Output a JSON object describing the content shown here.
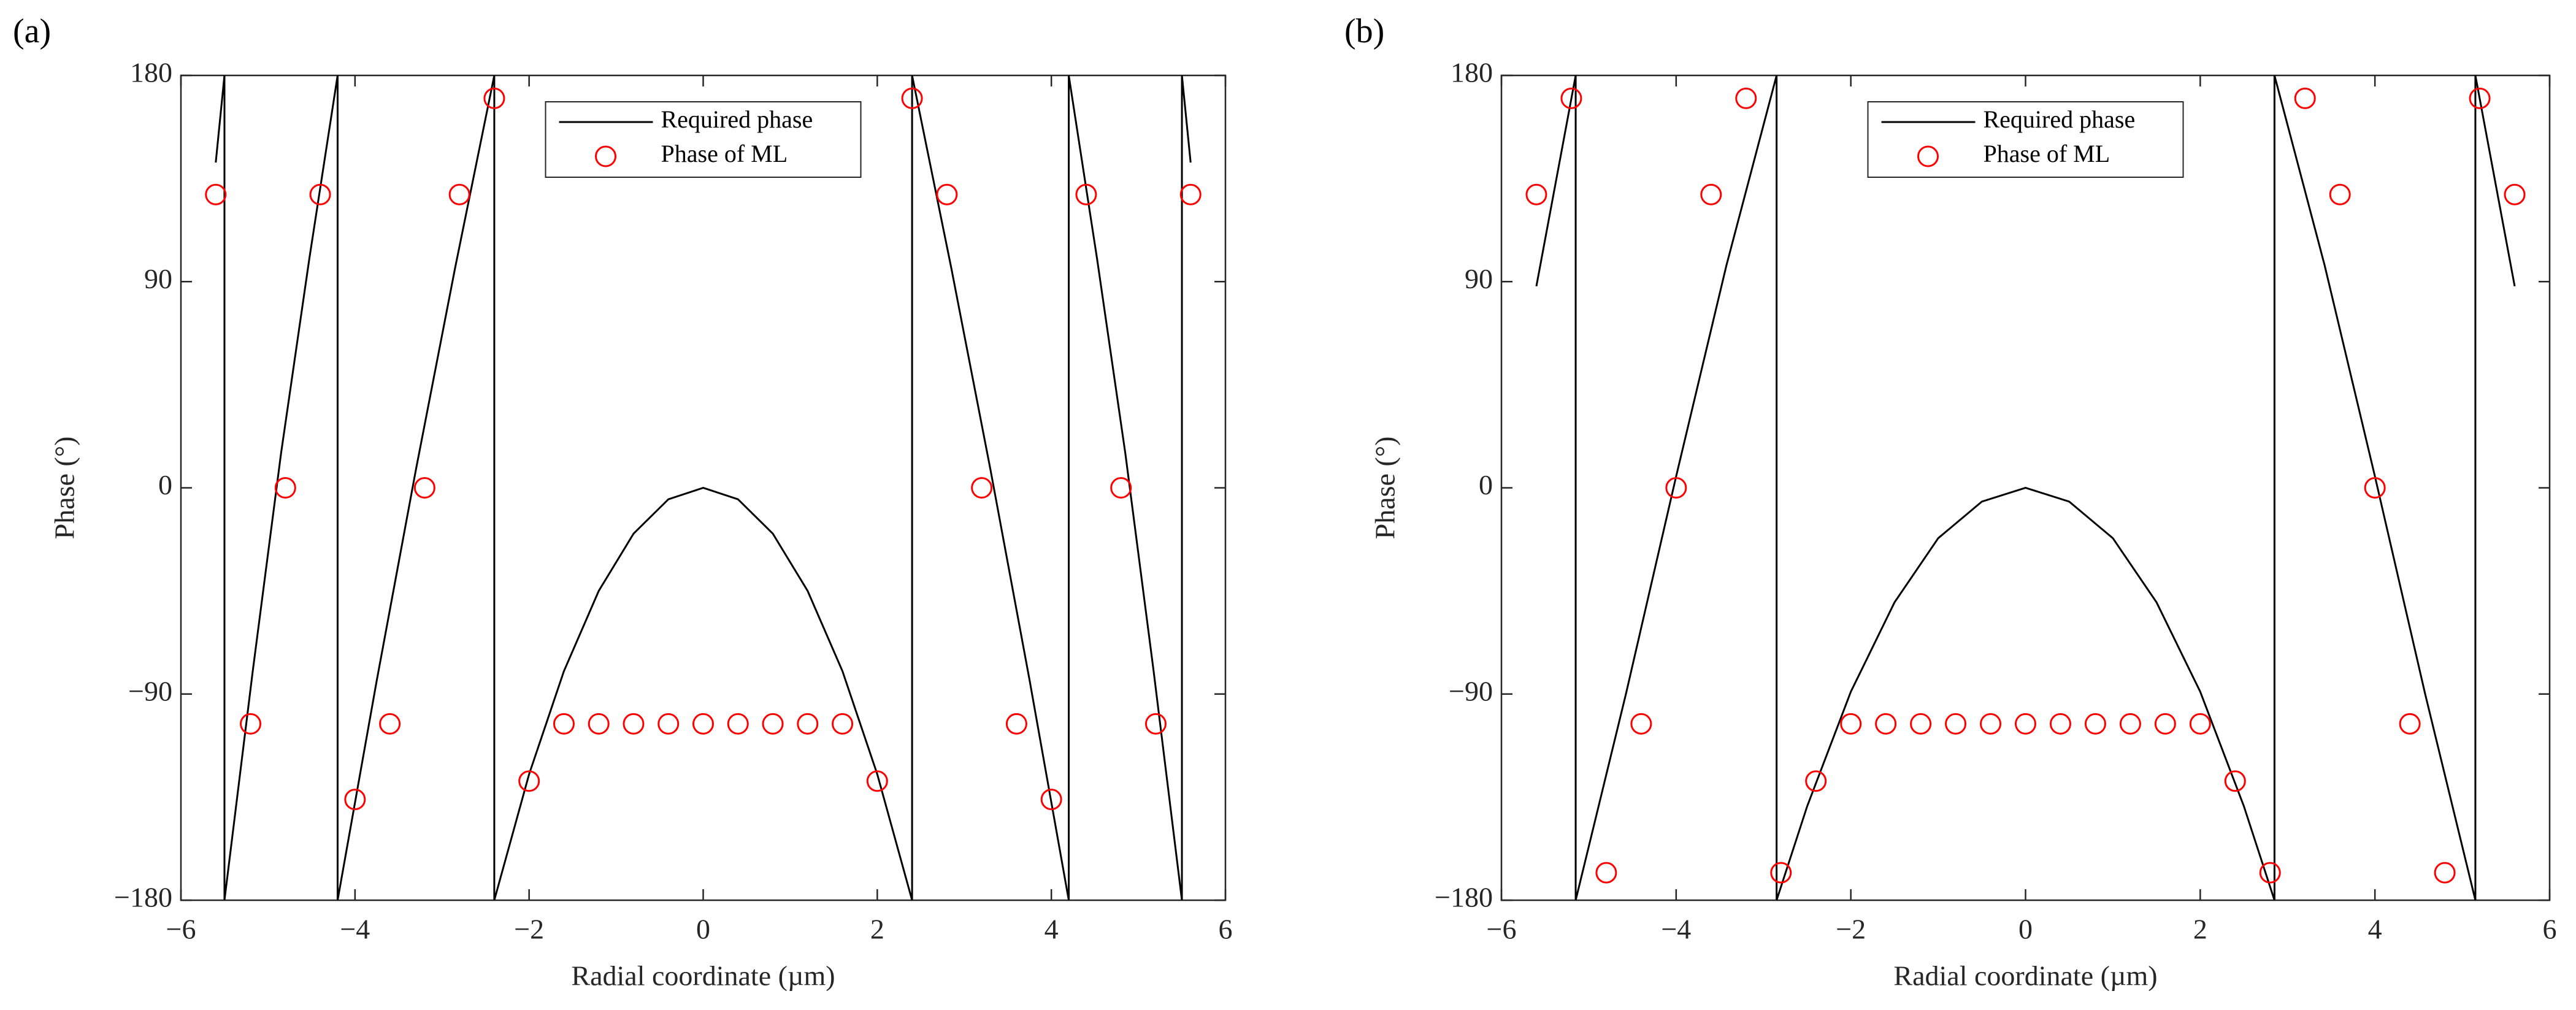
{
  "chart_data": [
    {
      "type": "line",
      "panel_label": "(a)",
      "xlabel": "Radial coordinate (µm)",
      "ylabel": "Phase (°)",
      "xlim": [
        -6,
        6
      ],
      "ylim": [
        -180,
        180
      ],
      "xticks": [
        {
          "value": -6,
          "label": "−6"
        },
        {
          "value": -4,
          "label": "−4"
        },
        {
          "value": -2,
          "label": "−2"
        },
        0,
        2,
        4,
        6
      ],
      "yticks": [
        {
          "value": -180,
          "label": "−180"
        },
        {
          "value": -90,
          "label": "−90"
        },
        0,
        90,
        180
      ],
      "legend": "upper center",
      "series": [
        {
          "name": "Required phase",
          "type": "line",
          "color": "#000000",
          "x": [
            -5.6,
            -5.5,
            -5.5,
            -5.175,
            -4.85,
            -4.525,
            -4.2,
            -4.2,
            -3.75,
            -3.3,
            -2.85,
            -2.4,
            -2.4,
            -2.0,
            -1.6,
            -1.2,
            -0.8,
            -0.4,
            0,
            0.4,
            0.8,
            1.2,
            1.6,
            2.0,
            2.4,
            2.4,
            2.85,
            3.3,
            3.75,
            4.2,
            4.2,
            4.525,
            4.85,
            5.175,
            5.5,
            5.5,
            5.6
          ],
          "values": [
            142,
            180,
            -180,
            -80,
            15,
            100,
            180,
            -180,
            -84,
            8,
            96,
            180,
            -180,
            -125,
            -80,
            -45,
            -20,
            -5,
            0,
            -5,
            -20,
            -45,
            -80,
            -125,
            -180,
            180,
            96,
            8,
            -84,
            -180,
            180,
            100,
            15,
            -80,
            -180,
            180,
            142
          ]
        },
        {
          "name": "Phase of ML",
          "type": "scatter",
          "marker": "open-circle",
          "color": "#ff0000",
          "x": [
            -5.6,
            -5.2,
            -4.8,
            -4.4,
            -4.0,
            -3.6,
            -3.2,
            -2.8,
            -2.4,
            -2.0,
            -1.6,
            -1.2,
            -0.8,
            -0.4,
            0,
            0.4,
            0.8,
            1.2,
            1.6,
            2.0,
            2.4,
            2.8,
            3.2,
            3.6,
            4.0,
            4.4,
            4.8,
            5.2,
            5.6
          ],
          "values": [
            128,
            -103,
            0,
            128,
            -136,
            -103,
            0,
            128,
            170,
            -128,
            -103,
            -103,
            -103,
            -103,
            -103,
            -103,
            -103,
            -103,
            -103,
            -128,
            170,
            128,
            0,
            -103,
            -136,
            128,
            0,
            -103,
            128
          ]
        }
      ]
    },
    {
      "type": "line",
      "panel_label": "(b)",
      "xlabel": "Radial coordinate (µm)",
      "ylabel": "Phase (°)",
      "xlim": [
        -6,
        6
      ],
      "ylim": [
        -180,
        180
      ],
      "xticks": [
        {
          "value": -6,
          "label": "−6"
        },
        {
          "value": -4,
          "label": "−4"
        },
        {
          "value": -2,
          "label": "−2"
        },
        0,
        2,
        4,
        6
      ],
      "yticks": [
        {
          "value": -180,
          "label": "−180"
        },
        {
          "value": -90,
          "label": "−90"
        },
        0,
        90,
        180
      ],
      "legend": "upper center",
      "series": [
        {
          "name": "Required phase",
          "type": "line",
          "color": "#000000",
          "x": [
            -5.6,
            -5.15,
            -5.15,
            -4.575,
            -4.0,
            -3.425,
            -2.85,
            -2.85,
            -2.5,
            -2.0,
            -1.5,
            -1.0,
            -0.5,
            0,
            0.5,
            1.0,
            1.5,
            2.0,
            2.5,
            2.85,
            2.85,
            3.425,
            4.0,
            4.575,
            5.15,
            5.15,
            5.6
          ],
          "values": [
            88,
            180,
            -180,
            -90,
            5,
            97,
            180,
            -180,
            -139,
            -89,
            -50,
            -22,
            -6,
            0,
            -6,
            -22,
            -50,
            -89,
            -139,
            -180,
            180,
            97,
            5,
            -90,
            -180,
            180,
            88
          ]
        },
        {
          "name": "Phase of ML",
          "type": "scatter",
          "marker": "open-circle",
          "color": "#ff0000",
          "x": [
            -5.6,
            -5.2,
            -4.8,
            -4.4,
            -4.0,
            -3.6,
            -3.2,
            -2.8,
            -2.4,
            -2.0,
            -1.6,
            -1.2,
            -0.8,
            -0.4,
            0,
            0.4,
            0.8,
            1.2,
            1.6,
            2.0,
            2.4,
            2.8,
            3.2,
            3.6,
            4.0,
            4.4,
            4.8,
            5.2,
            5.6
          ],
          "values": [
            128,
            170,
            -168,
            -103,
            0,
            128,
            170,
            -168,
            -128,
            -103,
            -103,
            -103,
            -103,
            -103,
            -103,
            -103,
            -103,
            -103,
            -103,
            -103,
            -128,
            -168,
            170,
            128,
            0,
            -103,
            -168,
            170,
            128
          ]
        }
      ]
    }
  ]
}
